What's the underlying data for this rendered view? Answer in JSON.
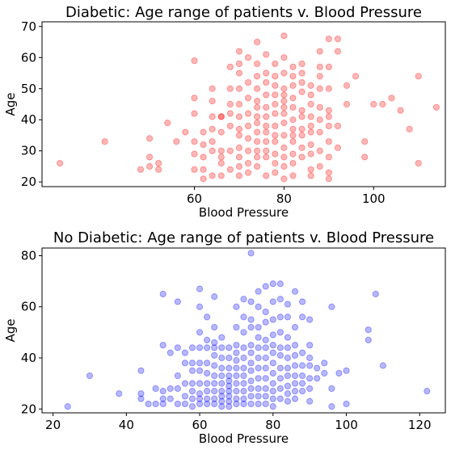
{
  "chart_data": [
    {
      "type": "scatter",
      "title": "Diabetic: Age range of patients v. Blood Pressure",
      "xlabel": "Blood Pressure",
      "ylabel": "Age",
      "xlim": [
        26,
        116
      ],
      "ylim": [
        18.5,
        71.5
      ],
      "xticks": [
        60,
        80,
        100
      ],
      "xtick_labels": [
        "60",
        "80",
        "100"
      ],
      "yticks": [
        20,
        30,
        40,
        50,
        60,
        70
      ],
      "ytick_labels": [
        "20",
        "30",
        "40",
        "50",
        "60",
        "70"
      ],
      "grid": false,
      "color": "#ff0000",
      "alpha": 0.28,
      "x": [
        30,
        40,
        48,
        50,
        50,
        50,
        52,
        52,
        54,
        56,
        58,
        60,
        60,
        60,
        60,
        60,
        60,
        62,
        62,
        62,
        62,
        62,
        64,
        64,
        64,
        64,
        64,
        64,
        64,
        66,
        66,
        66,
        66,
        66,
        66,
        66,
        68,
        68,
        68,
        68,
        68,
        68,
        68,
        70,
        70,
        70,
        70,
        70,
        70,
        70,
        70,
        70,
        70,
        70,
        70,
        72,
        72,
        72,
        72,
        72,
        72,
        72,
        72,
        72,
        74,
        74,
        74,
        74,
        74,
        74,
        74,
        74,
        74,
        74,
        74,
        74,
        74,
        76,
        76,
        76,
        76,
        76,
        76,
        76,
        76,
        76,
        76,
        76,
        76,
        78,
        78,
        78,
        78,
        78,
        78,
        78,
        78,
        78,
        78,
        78,
        78,
        80,
        80,
        80,
        80,
        80,
        80,
        80,
        80,
        80,
        80,
        80,
        80,
        80,
        80,
        82,
        82,
        82,
        82,
        82,
        82,
        82,
        82,
        82,
        82,
        82,
        82,
        84,
        84,
        84,
        84,
        84,
        84,
        84,
        84,
        84,
        84,
        86,
        86,
        86,
        86,
        86,
        86,
        86,
        86,
        86,
        86,
        88,
        88,
        88,
        88,
        88,
        88,
        88,
        88,
        88,
        90,
        90,
        90,
        90,
        90,
        90,
        90,
        90,
        90,
        90,
        92,
        92,
        92,
        92,
        94,
        94,
        96,
        98,
        98,
        100,
        102,
        104,
        106,
        108,
        110,
        110,
        114
      ],
      "y": [
        26,
        33,
        24,
        34,
        28,
        25,
        26,
        24,
        39,
        33,
        36,
        42,
        59,
        47,
        33,
        29,
        24,
        21,
        24,
        28,
        32,
        36,
        46,
        50,
        41,
        37,
        33,
        30,
        22,
        41,
        41,
        36,
        30,
        28,
        26,
        22,
        57,
        50,
        45,
        42,
        38,
        30,
        24,
        62,
        58,
        55,
        50,
        45,
        41,
        37,
        35,
        31,
        28,
        25,
        22,
        60,
        52,
        47,
        42,
        38,
        34,
        30,
        26,
        23,
        65,
        58,
        54,
        50,
        46,
        44,
        41,
        39,
        36,
        33,
        30,
        28,
        25,
        61,
        55,
        52,
        48,
        44,
        41,
        38,
        36,
        33,
        30,
        28,
        22,
        58,
        54,
        51,
        48,
        45,
        42,
        38,
        35,
        33,
        29,
        26,
        23,
        67,
        60,
        55,
        50,
        46,
        42,
        39,
        35,
        31,
        28,
        25,
        21,
        48,
        44,
        57,
        54,
        51,
        47,
        44,
        40,
        37,
        35,
        33,
        29,
        26,
        22,
        58,
        55,
        52,
        49,
        43,
        41,
        37,
        35,
        31,
        28,
        51,
        48,
        45,
        41,
        38,
        36,
        32,
        29,
        24,
        22,
        62,
        57,
        54,
        50,
        44,
        40,
        36,
        30,
        25,
        66,
        57,
        50,
        43,
        41,
        38,
        33,
        28,
        23,
        21,
        66,
        62,
        38,
        31,
        51,
        45,
        54,
        33,
        28,
        45,
        45,
        47,
        43,
        37,
        26,
        54,
        44
      ]
    },
    {
      "type": "scatter",
      "title": "No Diabetic: Age range of patients v. Blood Pressure",
      "xlabel": "Blood Pressure",
      "ylabel": "Age",
      "xlim": [
        17,
        127
      ],
      "ylim": [
        18.5,
        83
      ],
      "xticks": [
        20,
        40,
        60,
        80,
        100,
        120
      ],
      "xtick_labels": [
        "20",
        "40",
        "60",
        "80",
        "100",
        "120"
      ],
      "yticks": [
        20,
        40,
        60,
        80
      ],
      "ytick_labels": [
        "20",
        "40",
        "60",
        "80"
      ],
      "grid": false,
      "color": "#0000ff",
      "alpha": 0.28,
      "x": [
        24,
        30,
        38,
        44,
        44,
        44,
        46,
        48,
        48,
        50,
        50,
        50,
        50,
        50,
        52,
        52,
        52,
        54,
        54,
        54,
        54,
        54,
        56,
        56,
        56,
        56,
        56,
        58,
        58,
        58,
        58,
        58,
        58,
        58,
        60,
        60,
        60,
        60,
        60,
        60,
        60,
        60,
        60,
        60,
        62,
        62,
        62,
        62,
        62,
        62,
        62,
        62,
        62,
        64,
        64,
        64,
        64,
        64,
        64,
        64,
        64,
        64,
        64,
        64,
        66,
        66,
        66,
        66,
        66,
        66,
        66,
        66,
        66,
        66,
        68,
        68,
        68,
        68,
        68,
        68,
        68,
        68,
        68,
        68,
        70,
        70,
        70,
        70,
        70,
        70,
        70,
        70,
        70,
        70,
        70,
        72,
        72,
        72,
        72,
        72,
        72,
        72,
        72,
        72,
        72,
        72,
        74,
        74,
        74,
        74,
        74,
        74,
        74,
        74,
        74,
        74,
        74,
        74,
        76,
        76,
        76,
        76,
        76,
        76,
        76,
        76,
        76,
        76,
        76,
        78,
        78,
        78,
        78,
        78,
        78,
        78,
        78,
        78,
        78,
        78,
        80,
        80,
        80,
        80,
        80,
        80,
        80,
        80,
        80,
        80,
        80,
        80,
        82,
        82,
        82,
        82,
        82,
        82,
        82,
        82,
        82,
        82,
        84,
        84,
        84,
        84,
        84,
        84,
        84,
        84,
        84,
        84,
        86,
        86,
        86,
        86,
        86,
        86,
        86,
        86,
        86,
        88,
        88,
        88,
        88,
        88,
        88,
        88,
        90,
        90,
        90,
        90,
        90,
        90,
        90,
        92,
        92,
        94,
        94,
        96,
        96,
        96,
        98,
        100,
        100,
        106,
        106,
        108,
        110,
        122
      ],
      "y": [
        21,
        33,
        26,
        35,
        26,
        24,
        22,
        22,
        28,
        65,
        45,
        27,
        24,
        22,
        42,
        28,
        24,
        62,
        44,
        33,
        28,
        22,
        42,
        38,
        30,
        25,
        22,
        44,
        38,
        35,
        30,
        27,
        24,
        21,
        67,
        60,
        50,
        44,
        38,
        35,
        30,
        26,
        24,
        22,
        56,
        47,
        44,
        38,
        34,
        30,
        27,
        24,
        22,
        64,
        52,
        46,
        44,
        41,
        37,
        33,
        30,
        27,
        24,
        22,
        48,
        44,
        40,
        36,
        33,
        30,
        27,
        25,
        23,
        21,
        44,
        40,
        36,
        33,
        31,
        29,
        27,
        25,
        23,
        21,
        60,
        52,
        45,
        42,
        39,
        36,
        33,
        30,
        27,
        24,
        22,
        63,
        56,
        50,
        44,
        40,
        36,
        33,
        30,
        27,
        24,
        22,
        81,
        62,
        55,
        52,
        45,
        42,
        38,
        35,
        31,
        28,
        25,
        22,
        66,
        60,
        52,
        48,
        44,
        40,
        36,
        32,
        28,
        25,
        22,
        68,
        58,
        54,
        47,
        44,
        40,
        36,
        32,
        28,
        25,
        22,
        69,
        62,
        55,
        49,
        45,
        42,
        38,
        34,
        30,
        27,
        24,
        21,
        69,
        63,
        56,
        50,
        44,
        41,
        36,
        32,
        28,
        24,
        61,
        56,
        48,
        44,
        40,
        36,
        33,
        29,
        26,
        23,
        66,
        52,
        45,
        41,
        37,
        33,
        30,
        27,
        24,
        62,
        56,
        42,
        37,
        33,
        30,
        27,
        55,
        45,
        40,
        37,
        32,
        28,
        23,
        36,
        32,
        38,
        34,
        60,
        28,
        21,
        34,
        35,
        22,
        51,
        47,
        65,
        37,
        27
      ]
    }
  ]
}
